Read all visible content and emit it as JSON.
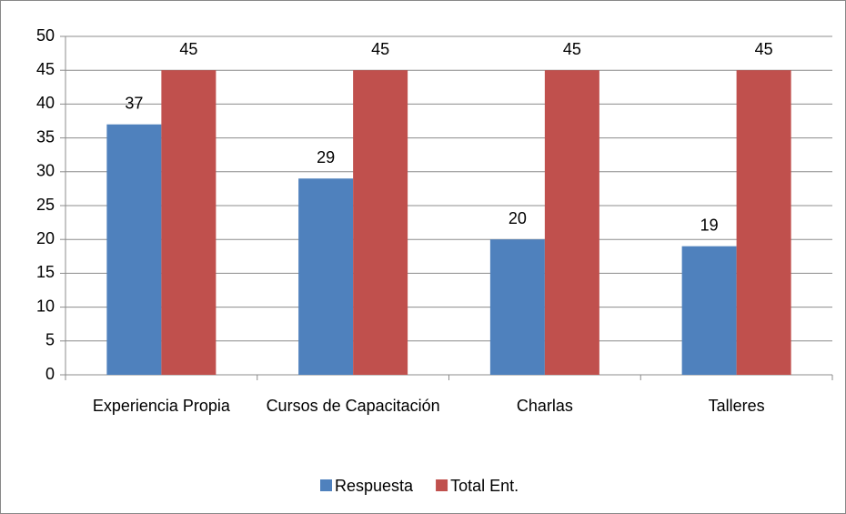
{
  "chart_data": {
    "type": "bar",
    "categories": [
      "Experiencia Propia",
      "Cursos de Capacitación",
      "Charlas",
      "Talleres"
    ],
    "series": [
      {
        "name": "Respuesta",
        "color": "#4f81bd",
        "values": [
          37,
          29,
          20,
          19
        ]
      },
      {
        "name": "Total Ent.",
        "color": "#c0504d",
        "values": [
          45,
          45,
          45,
          45
        ]
      }
    ],
    "ylim": [
      0,
      50
    ],
    "yticks": [
      0,
      5,
      10,
      15,
      20,
      25,
      30,
      35,
      40,
      45,
      50
    ],
    "grid": true,
    "legend": "bottom"
  }
}
